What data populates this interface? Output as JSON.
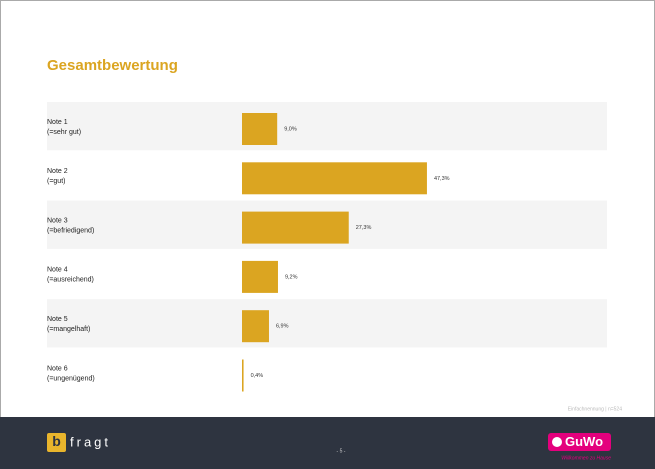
{
  "chart_data": {
    "type": "hbar",
    "title": "Gesamtbewertung",
    "categories": [
      "Note 1",
      "Note 2",
      "Note 3",
      "Note 4",
      "Note 5",
      "Note 6"
    ],
    "category_notes": [
      "(=sehr gut)",
      "(=gut)",
      "(=befriedigend)",
      "(=ausreichend)",
      "(=mangelhaft)",
      "(=ungenügend)"
    ],
    "values": [
      9.0,
      47.3,
      27.3,
      9.2,
      6.9,
      0.4
    ],
    "value_labels": [
      "9,0%",
      "47,3%",
      "27,3%",
      "9,2%",
      "6,9%",
      "0,4%"
    ],
    "color": "#dba521",
    "footnote": "Einfachnennung | n=524"
  },
  "footer": {
    "page": "- 5 -",
    "logo_left": {
      "mark": "b",
      "text": "fragt"
    },
    "logo_right": {
      "text": "GuWo",
      "tagline": "Willkommen zu Hause"
    }
  }
}
